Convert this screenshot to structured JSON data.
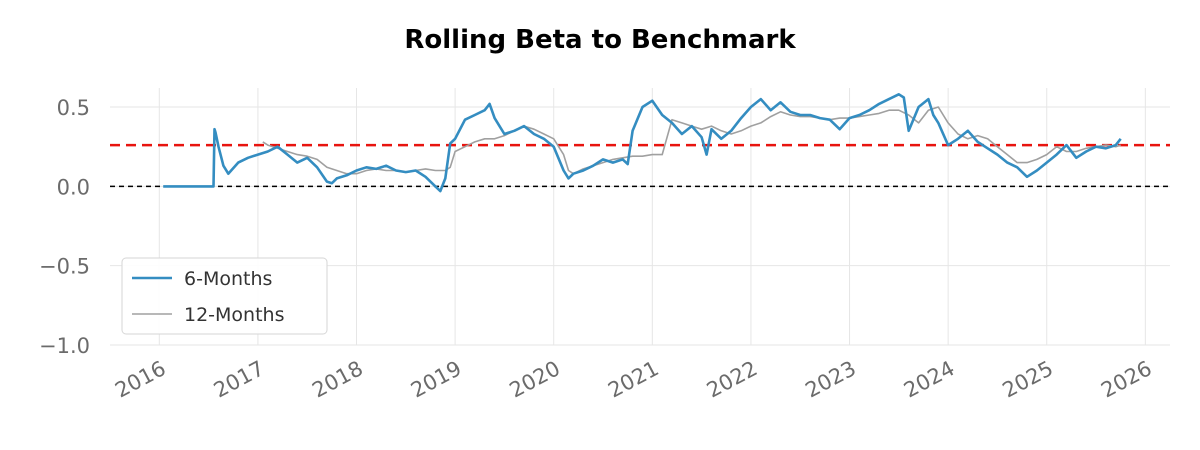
{
  "chart_data": {
    "type": "line",
    "title": "Rolling Beta to Benchmark",
    "xlabel": "",
    "ylabel": "",
    "xlim": [
      2015.5,
      2026.25
    ],
    "ylim": [
      -1.0,
      0.62
    ],
    "x_ticks": [
      2016,
      2017,
      2018,
      2019,
      2020,
      2021,
      2022,
      2023,
      2024,
      2025,
      2026
    ],
    "x_tick_labels": [
      "2016",
      "2017",
      "2018",
      "2019",
      "2020",
      "2021",
      "2022",
      "2023",
      "2024",
      "2025",
      "2026"
    ],
    "y_ticks": [
      0.5,
      0.0,
      -0.5,
      -1.0
    ],
    "y_tick_labels": [
      "0.5",
      "0.0",
      "−0.5",
      "−1.0"
    ],
    "grid": true,
    "legend_position": "lower-left",
    "reference_lines": [
      {
        "y": 0.26,
        "color": "#e8140f",
        "style": "dashed"
      },
      {
        "y": 0.0,
        "color": "#000000",
        "style": "dashed"
      }
    ],
    "series": [
      {
        "name": "6-Months",
        "color": "#348dc1",
        "x": [
          2016.04,
          2016.3,
          2016.55,
          2016.56,
          2016.57,
          2016.6,
          2016.65,
          2016.7,
          2016.8,
          2016.9,
          2017.0,
          2017.1,
          2017.2,
          2017.3,
          2017.4,
          2017.5,
          2017.6,
          2017.7,
          2017.75,
          2017.8,
          2017.9,
          2018.0,
          2018.1,
          2018.2,
          2018.3,
          2018.4,
          2018.5,
          2018.6,
          2018.7,
          2018.8,
          2018.85,
          2018.9,
          2018.95,
          2019.0,
          2019.1,
          2019.2,
          2019.3,
          2019.35,
          2019.4,
          2019.45,
          2019.5,
          2019.6,
          2019.7,
          2019.8,
          2019.9,
          2020.0,
          2020.1,
          2020.15,
          2020.2,
          2020.3,
          2020.4,
          2020.5,
          2020.6,
          2020.7,
          2020.75,
          2020.8,
          2020.9,
          2021.0,
          2021.1,
          2021.2,
          2021.3,
          2021.4,
          2021.5,
          2021.55,
          2021.6,
          2021.7,
          2021.8,
          2021.9,
          2022.0,
          2022.1,
          2022.2,
          2022.3,
          2022.4,
          2022.5,
          2022.6,
          2022.7,
          2022.8,
          2022.9,
          2023.0,
          2023.1,
          2023.2,
          2023.3,
          2023.4,
          2023.5,
          2023.55,
          2023.6,
          2023.7,
          2023.8,
          2023.85,
          2023.9,
          2024.0,
          2024.1,
          2024.2,
          2024.3,
          2024.4,
          2024.5,
          2024.6,
          2024.7,
          2024.8,
          2024.9,
          2025.0,
          2025.1,
          2025.2,
          2025.3,
          2025.4,
          2025.5,
          2025.6,
          2025.7,
          2025.75
        ],
        "values": [
          0.0,
          0.0,
          0.0,
          0.36,
          0.34,
          0.25,
          0.13,
          0.08,
          0.15,
          0.18,
          0.2,
          0.22,
          0.25,
          0.2,
          0.15,
          0.18,
          0.12,
          0.03,
          0.02,
          0.05,
          0.07,
          0.1,
          0.12,
          0.11,
          0.13,
          0.1,
          0.09,
          0.1,
          0.06,
          0.0,
          -0.03,
          0.05,
          0.27,
          0.3,
          0.42,
          0.45,
          0.48,
          0.52,
          0.43,
          0.38,
          0.33,
          0.35,
          0.38,
          0.33,
          0.3,
          0.25,
          0.1,
          0.05,
          0.08,
          0.1,
          0.13,
          0.17,
          0.15,
          0.17,
          0.14,
          0.35,
          0.5,
          0.54,
          0.45,
          0.4,
          0.33,
          0.38,
          0.31,
          0.2,
          0.36,
          0.3,
          0.35,
          0.43,
          0.5,
          0.55,
          0.48,
          0.53,
          0.47,
          0.45,
          0.45,
          0.43,
          0.42,
          0.36,
          0.43,
          0.45,
          0.48,
          0.52,
          0.55,
          0.58,
          0.56,
          0.35,
          0.5,
          0.55,
          0.45,
          0.4,
          0.26,
          0.3,
          0.35,
          0.28,
          0.24,
          0.2,
          0.15,
          0.12,
          0.06,
          0.1,
          0.15,
          0.2,
          0.26,
          0.18,
          0.22,
          0.25,
          0.24,
          0.26,
          0.3
        ]
      },
      {
        "name": "12-Months",
        "color": "#a0a0a0",
        "x": [
          2017.05,
          2017.1,
          2017.2,
          2017.3,
          2017.4,
          2017.5,
          2017.6,
          2017.7,
          2017.8,
          2017.9,
          2018.0,
          2018.1,
          2018.2,
          2018.3,
          2018.4,
          2018.5,
          2018.6,
          2018.7,
          2018.8,
          2018.9,
          2018.95,
          2019.0,
          2019.1,
          2019.2,
          2019.3,
          2019.4,
          2019.5,
          2019.6,
          2019.7,
          2019.8,
          2019.9,
          2020.0,
          2020.1,
          2020.15,
          2020.2,
          2020.3,
          2020.4,
          2020.5,
          2020.6,
          2020.7,
          2020.8,
          2020.9,
          2021.0,
          2021.1,
          2021.2,
          2021.3,
          2021.4,
          2021.5,
          2021.6,
          2021.7,
          2021.8,
          2021.9,
          2022.0,
          2022.1,
          2022.2,
          2022.3,
          2022.4,
          2022.5,
          2022.6,
          2022.7,
          2022.8,
          2022.9,
          2023.0,
          2023.1,
          2023.2,
          2023.3,
          2023.4,
          2023.5,
          2023.6,
          2023.7,
          2023.8,
          2023.9,
          2024.0,
          2024.1,
          2024.2,
          2024.3,
          2024.4,
          2024.5,
          2024.6,
          2024.7,
          2024.8,
          2024.9,
          2025.0,
          2025.1,
          2025.2,
          2025.3,
          2025.4,
          2025.5,
          2025.6,
          2025.7,
          2025.75
        ],
        "values": [
          0.28,
          0.26,
          0.24,
          0.22,
          0.2,
          0.19,
          0.17,
          0.12,
          0.1,
          0.08,
          0.08,
          0.1,
          0.11,
          0.1,
          0.1,
          0.09,
          0.1,
          0.11,
          0.1,
          0.1,
          0.12,
          0.22,
          0.25,
          0.28,
          0.3,
          0.3,
          0.32,
          0.35,
          0.38,
          0.36,
          0.33,
          0.3,
          0.2,
          0.1,
          0.08,
          0.11,
          0.13,
          0.15,
          0.17,
          0.18,
          0.19,
          0.19,
          0.2,
          0.2,
          0.42,
          0.4,
          0.38,
          0.36,
          0.38,
          0.35,
          0.33,
          0.35,
          0.38,
          0.4,
          0.44,
          0.47,
          0.45,
          0.44,
          0.44,
          0.43,
          0.42,
          0.43,
          0.43,
          0.44,
          0.45,
          0.46,
          0.48,
          0.48,
          0.45,
          0.4,
          0.48,
          0.5,
          0.4,
          0.33,
          0.3,
          0.32,
          0.3,
          0.25,
          0.2,
          0.15,
          0.15,
          0.17,
          0.2,
          0.25,
          0.22,
          0.22,
          0.24,
          0.25,
          0.26,
          0.25,
          0.26
        ]
      }
    ]
  }
}
